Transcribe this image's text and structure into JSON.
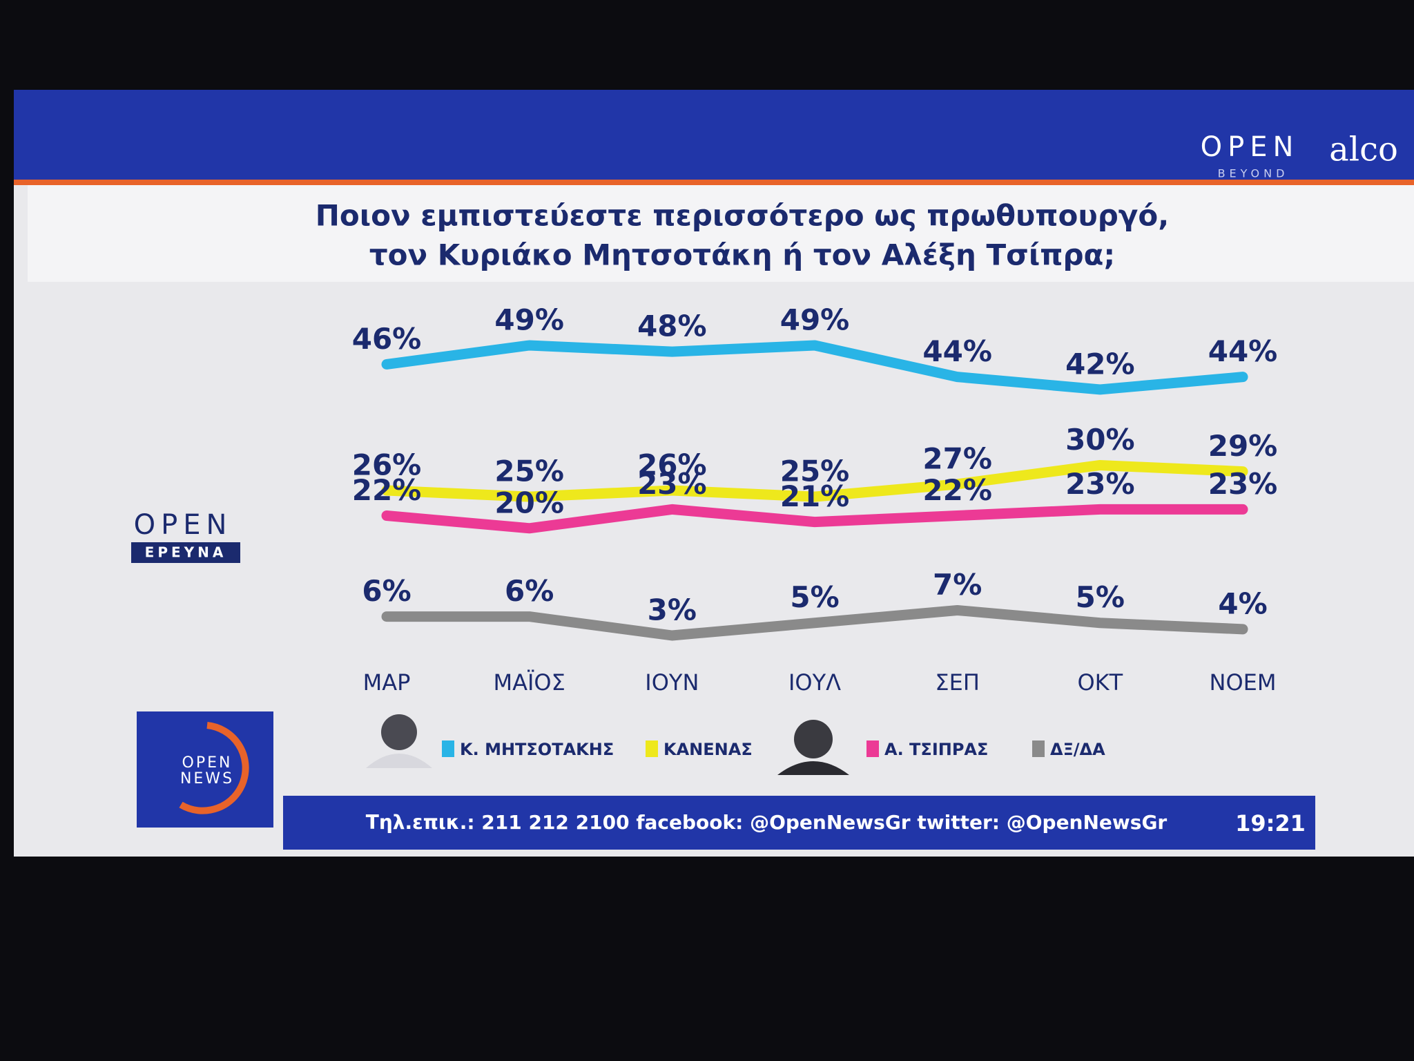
{
  "chart_data": {
    "type": "line",
    "title": [
      "Ποιον εμπιστεύεστε περισσότερο ως πρωθυπουργό,",
      "τον Κυριάκο Μητσοτάκη ή τον Αλέξη Τσίπρα;"
    ],
    "categories": [
      "ΜΑΡ",
      "ΜΑΪΟΣ",
      "ΙΟΥΝ",
      "ΙΟΥΛ",
      "ΣΕΠ",
      "ΟΚΤ",
      "ΝΟΕΜ"
    ],
    "series": [
      {
        "name": "Κ. ΜΗΤΣΟΤΑΚΗΣ",
        "color": "#29b4e6",
        "values": [
          46,
          49,
          48,
          49,
          44,
          42,
          44
        ],
        "value_labels": [
          "46%",
          "49%",
          "48%",
          "49%",
          "44%",
          "42%",
          "44%"
        ]
      },
      {
        "name": "ΚΑΝΕΝΑΣ",
        "color": "#eee81c",
        "values": [
          26,
          25,
          26,
          25,
          27,
          30,
          29
        ],
        "value_labels": [
          "26%",
          "25%",
          "26%",
          "25%",
          "27%",
          "30%",
          "29%"
        ]
      },
      {
        "name": "Α. ΤΣΙΠΡΑΣ",
        "color": "#ec3a95",
        "values": [
          22,
          20,
          23,
          21,
          22,
          23,
          23
        ],
        "value_labels": [
          "22%",
          "20%",
          "23%",
          "21%",
          "22%",
          "23%",
          "23%"
        ]
      },
      {
        "name": "ΔΞ/ΔΑ",
        "color": "#8a8a8a",
        "values": [
          6,
          6,
          3,
          5,
          7,
          5,
          4
        ],
        "value_labels": [
          "6%",
          "6%",
          "3%",
          "5%",
          "7%",
          "5%",
          "4%"
        ]
      }
    ]
  },
  "branding": {
    "open_beyond": "OPEN",
    "beyond": "BEYOND",
    "alco": "alco",
    "open_ereuna": "OPEN",
    "ereuna": "ΕΡΕΥΝΑ",
    "open_news_1": "OPEN",
    "open_news_2": "NEWS"
  },
  "ticker": {
    "text": "Τηλ.επικ.: 211 212 2100 facebook: @OpenNewsGr twitter: @OpenNewsGr",
    "time": "19:21"
  }
}
